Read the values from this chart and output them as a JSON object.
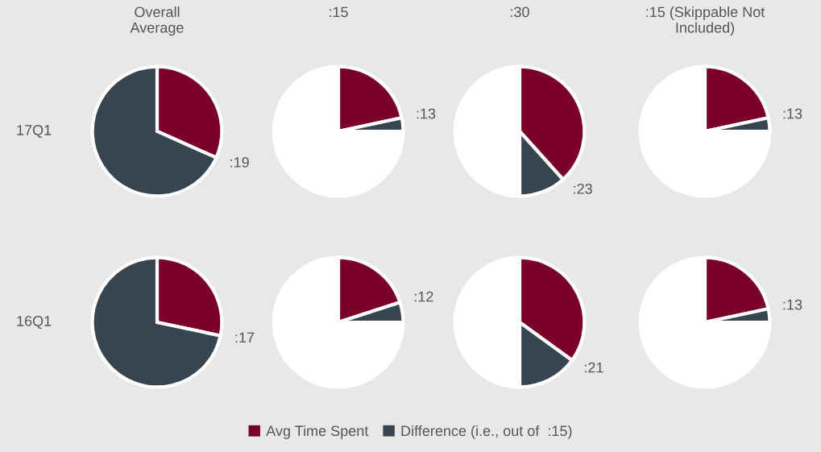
{
  "chart_data": [
    {
      "type": "pie",
      "title": "Overall\nAverage",
      "ylabel": "17Q1",
      "categories": [
        "Avg Time Spent",
        "Difference (i.e., out of  :15)"
      ],
      "values": [
        19,
        41
      ],
      "colors": [
        "#7a0029",
        "#36454f"
      ],
      "value_labels": [
        ":19",
        null
      ],
      "legend": "bottom"
    },
    {
      "type": "pie",
      "title": ":15",
      "categories": [
        null,
        null,
        null
      ],
      "values": [
        13,
        2,
        45
      ],
      "colors": [
        "#7a0029",
        "#36454f",
        "#ffffff"
      ],
      "value_labels": [
        ":13",
        null,
        null
      ]
    },
    {
      "type": "pie",
      "title": ":30",
      "categories": [
        null,
        null,
        null
      ],
      "values": [
        23,
        7,
        30
      ],
      "colors": [
        "#7a0029",
        "#36454f",
        "#ffffff"
      ],
      "value_labels": [
        ":23",
        null,
        null
      ]
    },
    {
      "type": "pie",
      "title": ":15 (Skippable Not\nIncluded)",
      "categories": [
        null,
        null,
        null
      ],
      "values": [
        13,
        2,
        45
      ],
      "colors": [
        "#7a0029",
        "#36454f",
        "#ffffff"
      ],
      "value_labels": [
        ":13",
        null,
        null
      ]
    },
    {
      "type": "pie",
      "ylabel": "16Q1",
      "categories": [
        null,
        null
      ],
      "values": [
        17,
        43
      ],
      "colors": [
        "#7a0029",
        "#36454f"
      ],
      "value_labels": [
        ":17",
        null
      ]
    },
    {
      "type": "pie",
      "categories": [
        null,
        null,
        null
      ],
      "values": [
        12,
        3,
        45
      ],
      "colors": [
        "#7a0029",
        "#36454f",
        "#ffffff"
      ],
      "value_labels": [
        ":12",
        null,
        null
      ]
    },
    {
      "type": "pie",
      "categories": [
        null,
        null,
        null
      ],
      "values": [
        21,
        9,
        30
      ],
      "colors": [
        "#7a0029",
        "#36454f",
        "#ffffff"
      ],
      "value_labels": [
        ":21",
        null,
        null
      ]
    },
    {
      "type": "pie",
      "categories": [
        null,
        null,
        null
      ],
      "values": [
        13,
        2,
        45
      ],
      "colors": [
        "#7a0029",
        "#36454f",
        "#ffffff"
      ],
      "value_labels": [
        ":13",
        null,
        null
      ]
    }
  ]
}
